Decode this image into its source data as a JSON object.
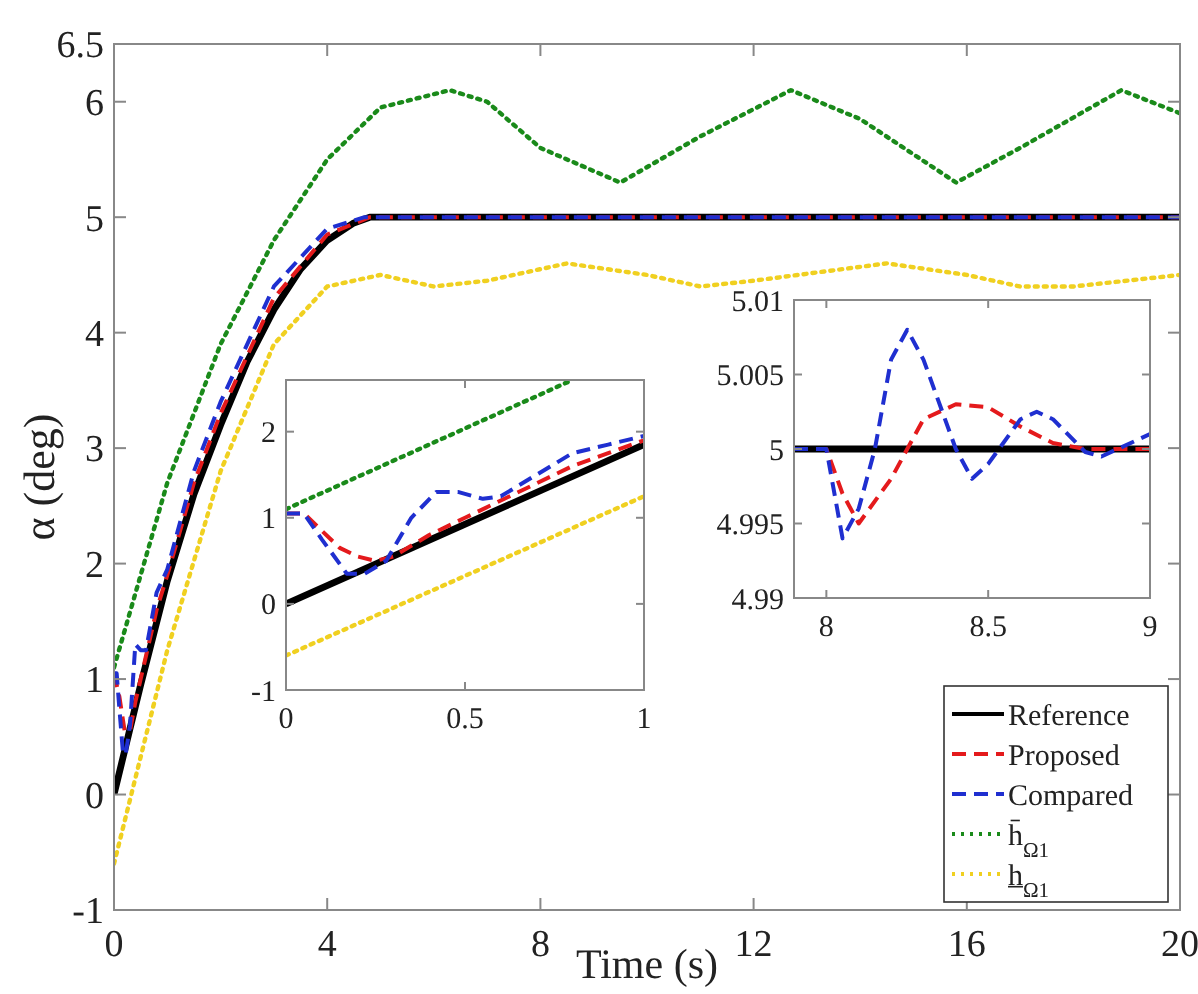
{
  "chart_data": [
    {
      "type": "line",
      "xlabel": "Time (s)",
      "ylabel": "α (deg)",
      "xlim": [
        0,
        20
      ],
      "ylim": [
        -1,
        6.5
      ],
      "xticks": [
        0,
        4,
        8,
        12,
        16,
        20
      ],
      "yticks": [
        -1,
        0,
        1,
        2,
        3,
        4,
        5,
        6,
        6.5
      ],
      "grid": false,
      "legend": "bottom right",
      "series": [
        {
          "name": "Reference",
          "color": "#000000",
          "line_style": "solid",
          "x": [
            0,
            0.5,
            1,
            1.5,
            2,
            2.5,
            3,
            3.5,
            4,
            4.5,
            4.8,
            20
          ],
          "values": [
            0,
            0.95,
            1.85,
            2.6,
            3.2,
            3.75,
            4.2,
            4.55,
            4.8,
            4.95,
            5,
            5
          ]
        },
        {
          "name": "Proposed",
          "color": "#e41a1c",
          "line_style": "dashed",
          "x": [
            0,
            0.1,
            0.2,
            0.3,
            0.4,
            0.6,
            0.8,
            1,
            1.5,
            2,
            3,
            4,
            4.8,
            20
          ],
          "values": [
            1.05,
            0.85,
            0.55,
            0.55,
            0.8,
            1.2,
            1.6,
            1.9,
            2.7,
            3.3,
            4.3,
            4.85,
            5,
            5
          ]
        },
        {
          "name": "Compared",
          "color": "#1f2fd0",
          "line_style": "dashed",
          "x": [
            0,
            0.05,
            0.1,
            0.17,
            0.22,
            0.3,
            0.4,
            0.5,
            0.6,
            0.8,
            1,
            1.5,
            2,
            3,
            4,
            4.7,
            20
          ],
          "values": [
            1.05,
            1.05,
            0.75,
            0.35,
            0.35,
            0.6,
            1.3,
            1.25,
            1.25,
            1.75,
            1.95,
            2.8,
            3.4,
            4.4,
            4.9,
            5,
            5
          ]
        },
        {
          "name": "h̄$_{Ω1}$",
          "color": "#1a8a1a",
          "line_style": "dotted",
          "x": [
            0,
            1,
            2,
            3,
            4,
            5,
            6.3,
            7,
            8,
            9.5,
            11,
            12.7,
            14,
            15.8,
            17,
            18.9,
            20
          ],
          "values": [
            1.1,
            2.7,
            3.9,
            4.8,
            5.5,
            5.95,
            6.1,
            6.0,
            5.6,
            5.3,
            5.7,
            6.1,
            5.85,
            5.3,
            5.6,
            6.1,
            5.9
          ]
        },
        {
          "name": "h̲$_{Ω1}$",
          "color": "#f0d020",
          "line_style": "dotted",
          "x": [
            0,
            1,
            2,
            3,
            4,
            5,
            6,
            7,
            8.5,
            10,
            11,
            12,
            14.5,
            16,
            17,
            18,
            20
          ],
          "values": [
            -0.6,
            1.25,
            2.8,
            3.9,
            4.4,
            4.5,
            4.4,
            4.45,
            4.6,
            4.5,
            4.4,
            4.45,
            4.6,
            4.5,
            4.4,
            4.4,
            4.5
          ]
        }
      ]
    },
    {
      "type": "line",
      "xlim": [
        0,
        1
      ],
      "ylim": [
        -1,
        2.6
      ],
      "xticks": [
        0,
        0.5,
        1
      ],
      "yticks": [
        -1,
        0,
        1,
        2
      ],
      "grid": false,
      "legend": false,
      "series": [
        {
          "color": "#000000",
          "line_style": "solid",
          "x": [
            0,
            1
          ],
          "values": [
            0,
            1.85
          ]
        },
        {
          "color": "#e41a1c",
          "line_style": "dashed",
          "x": [
            0,
            0.05,
            0.1,
            0.15,
            0.2,
            0.25,
            0.3,
            0.4,
            0.5,
            0.6,
            0.7,
            0.8,
            0.9,
            1
          ],
          "values": [
            1.05,
            1.05,
            0.85,
            0.65,
            0.55,
            0.5,
            0.55,
            0.8,
            1.0,
            1.2,
            1.4,
            1.6,
            1.75,
            1.9
          ]
        },
        {
          "color": "#1f2fd0",
          "line_style": "dashed",
          "x": [
            0,
            0.05,
            0.1,
            0.17,
            0.22,
            0.28,
            0.35,
            0.42,
            0.48,
            0.55,
            0.6,
            0.7,
            0.8,
            0.9,
            1
          ],
          "values": [
            1.05,
            1.05,
            0.75,
            0.35,
            0.35,
            0.5,
            1.0,
            1.3,
            1.3,
            1.22,
            1.25,
            1.5,
            1.75,
            1.85,
            1.95
          ]
        },
        {
          "color": "#1a8a1a",
          "line_style": "dotted",
          "x": [
            0,
            0.8
          ],
          "values": [
            1.1,
            2.6
          ]
        },
        {
          "color": "#f0d020",
          "line_style": "dotted",
          "x": [
            0,
            1
          ],
          "values": [
            -0.6,
            1.25
          ]
        }
      ]
    },
    {
      "type": "line",
      "xlim": [
        7.9,
        9
      ],
      "ylim": [
        4.99,
        5.01
      ],
      "xticks": [
        8,
        8.5,
        9
      ],
      "yticks": [
        4.99,
        4.995,
        5,
        5.005,
        5.01
      ],
      "grid": false,
      "legend": false,
      "series": [
        {
          "color": "#000000",
          "line_style": "solid",
          "x": [
            7.9,
            9
          ],
          "values": [
            5,
            5
          ]
        },
        {
          "color": "#e41a1c",
          "line_style": "dashed",
          "x": [
            7.9,
            8,
            8.05,
            8.1,
            8.2,
            8.3,
            8.4,
            8.5,
            8.6,
            8.7,
            8.8,
            9
          ],
          "values": [
            5,
            5,
            4.997,
            4.995,
            4.998,
            5.002,
            5.003,
            5.0028,
            5.0015,
            5.0004,
            5,
            5
          ]
        },
        {
          "color": "#1f2fd0",
          "line_style": "dashed",
          "x": [
            7.9,
            8,
            8.05,
            8.1,
            8.15,
            8.2,
            8.25,
            8.3,
            8.4,
            8.45,
            8.5,
            8.6,
            8.65,
            8.7,
            8.8,
            8.85,
            9
          ],
          "values": [
            5,
            5,
            4.994,
            4.996,
            5,
            5.006,
            5.008,
            5.006,
            5,
            4.998,
            4.999,
            5.002,
            5.0025,
            5.002,
            4.9998,
            4.9995,
            5.001
          ]
        }
      ]
    }
  ]
}
